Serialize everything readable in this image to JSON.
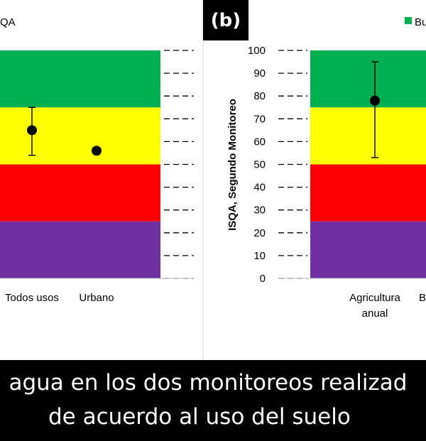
{
  "colors": {
    "bueno": "#00b050",
    "regular": "#ffff00",
    "malo": "#ff0000",
    "muy_malo": "#7030a0",
    "caption_bg": "#000000",
    "caption_text": "#ffffff"
  },
  "panel_tag": "(b)",
  "caption": {
    "line1": "l agua en los dos monitoreos realizad",
    "line2": "de acuerdo al uso del suelo"
  },
  "chart_data": [
    {
      "type": "scatter",
      "panel": "a",
      "legend_text": "QA",
      "categories": [
        "Todos usos",
        "Urbano"
      ],
      "values": [
        65,
        56
      ],
      "error_bars": [
        [
          54,
          75
        ],
        null
      ],
      "bands": [
        [
          0,
          25
        ],
        [
          25,
          50
        ],
        [
          50,
          75
        ],
        [
          75,
          100
        ]
      ],
      "ylim": [
        0,
        100
      ],
      "grid": true
    },
    {
      "type": "scatter",
      "panel": "b",
      "legend_text": "Bu",
      "ylabel": "ISQA, Segundo Monitoreo",
      "categories": [
        [
          "Agricultura",
          "anual"
        ],
        [
          "B"
        ]
      ],
      "values": [
        78
      ],
      "error_bars": [
        [
          53,
          95
        ]
      ],
      "ylim": [
        0,
        100
      ],
      "yticks": [
        "0",
        "10",
        "20",
        "30",
        "40",
        "50",
        "60",
        "70",
        "80",
        "90",
        "100"
      ],
      "bands": [
        [
          0,
          25
        ],
        [
          25,
          50
        ],
        [
          50,
          75
        ],
        [
          75,
          100
        ]
      ],
      "grid": true
    }
  ]
}
